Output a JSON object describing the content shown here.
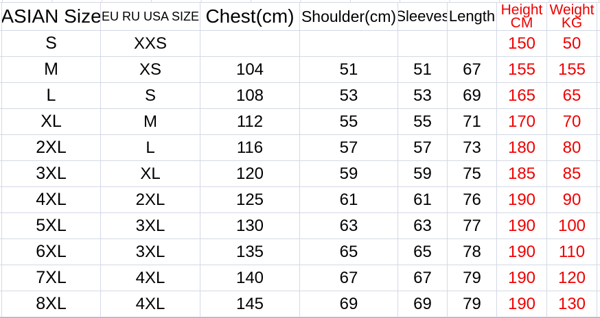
{
  "colors": {
    "red": "#ee0000",
    "grid": "#d3d8e4",
    "bg": "#ffffff",
    "text": "#000000",
    "bottom_edge": "#a9aeb8"
  },
  "table": {
    "headers": [
      {
        "label": "ASIAN Size"
      },
      {
        "label": "EU RU USA SIZE"
      },
      {
        "label": "Chest(cm)"
      },
      {
        "label": "Shoulder(cm)"
      },
      {
        "label": "Sleeves"
      },
      {
        "label": "Length"
      },
      {
        "label": "Height",
        "label2": "CM"
      },
      {
        "label": "Weight",
        "label2": "KG"
      }
    ],
    "rows": [
      [
        "S",
        "XXS",
        "",
        "",
        "",
        "",
        "150",
        "50"
      ],
      [
        "M",
        "XS",
        "104",
        "51",
        "51",
        "67",
        "155",
        "155"
      ],
      [
        "L",
        "S",
        "108",
        "53",
        "53",
        "69",
        "165",
        "65"
      ],
      [
        "XL",
        "M",
        "112",
        "55",
        "55",
        "71",
        "170",
        "70"
      ],
      [
        "2XL",
        "L",
        "116",
        "57",
        "57",
        "73",
        "180",
        "80"
      ],
      [
        "3XL",
        "XL",
        "120",
        "59",
        "59",
        "75",
        "185",
        "85"
      ],
      [
        "4XL",
        "2XL",
        "125",
        "61",
        "61",
        "76",
        "190",
        "90"
      ],
      [
        "5XL",
        "3XL",
        "130",
        "63",
        "63",
        "77",
        "190",
        "100"
      ],
      [
        "6XL",
        "3XL",
        "135",
        "65",
        "65",
        "78",
        "190",
        "110"
      ],
      [
        "7XL",
        "4XL",
        "140",
        "67",
        "67",
        "79",
        "190",
        "120"
      ],
      [
        "8XL",
        "4XL",
        "145",
        "69",
        "69",
        "79",
        "190",
        "130"
      ]
    ]
  }
}
